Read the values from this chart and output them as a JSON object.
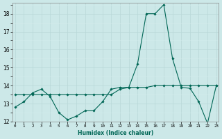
{
  "title": "",
  "xlabel": "Humidex (Indice chaleur)",
  "ylabel": "",
  "x": [
    0,
    1,
    2,
    3,
    4,
    5,
    6,
    7,
    8,
    9,
    10,
    11,
    12,
    13,
    14,
    15,
    16,
    17,
    18,
    19,
    20,
    21,
    22,
    23
  ],
  "y_main": [
    12.8,
    13.1,
    13.6,
    13.8,
    13.4,
    12.5,
    12.1,
    12.3,
    12.6,
    12.6,
    13.1,
    13.8,
    13.9,
    13.9,
    15.2,
    18.0,
    18.0,
    18.5,
    15.5,
    13.9,
    13.85,
    13.1,
    11.9,
    14.0
  ],
  "y_flat": [
    13.5,
    13.5,
    13.5,
    13.5,
    13.5,
    13.5,
    13.5,
    13.5,
    13.5,
    13.5,
    13.5,
    13.5,
    13.8,
    13.9,
    13.9,
    13.9,
    14.0,
    14.0,
    14.0,
    14.0,
    14.0,
    14.0,
    14.0,
    14.0
  ],
  "ylim": [
    12,
    18.6
  ],
  "xlim": [
    -0.3,
    23.3
  ],
  "yticks": [
    12,
    13,
    14,
    15,
    16,
    17,
    18
  ],
  "xticks": [
    0,
    1,
    2,
    3,
    4,
    5,
    6,
    7,
    8,
    9,
    10,
    11,
    12,
    13,
    14,
    15,
    16,
    17,
    18,
    19,
    20,
    21,
    22,
    23
  ],
  "line_color": "#006655",
  "bg_color": "#cce8e8",
  "grid_major_color": "#b8d8d8",
  "grid_minor_color": "#d4ecec",
  "marker": "D",
  "marker_size": 1.8,
  "lw": 0.8
}
